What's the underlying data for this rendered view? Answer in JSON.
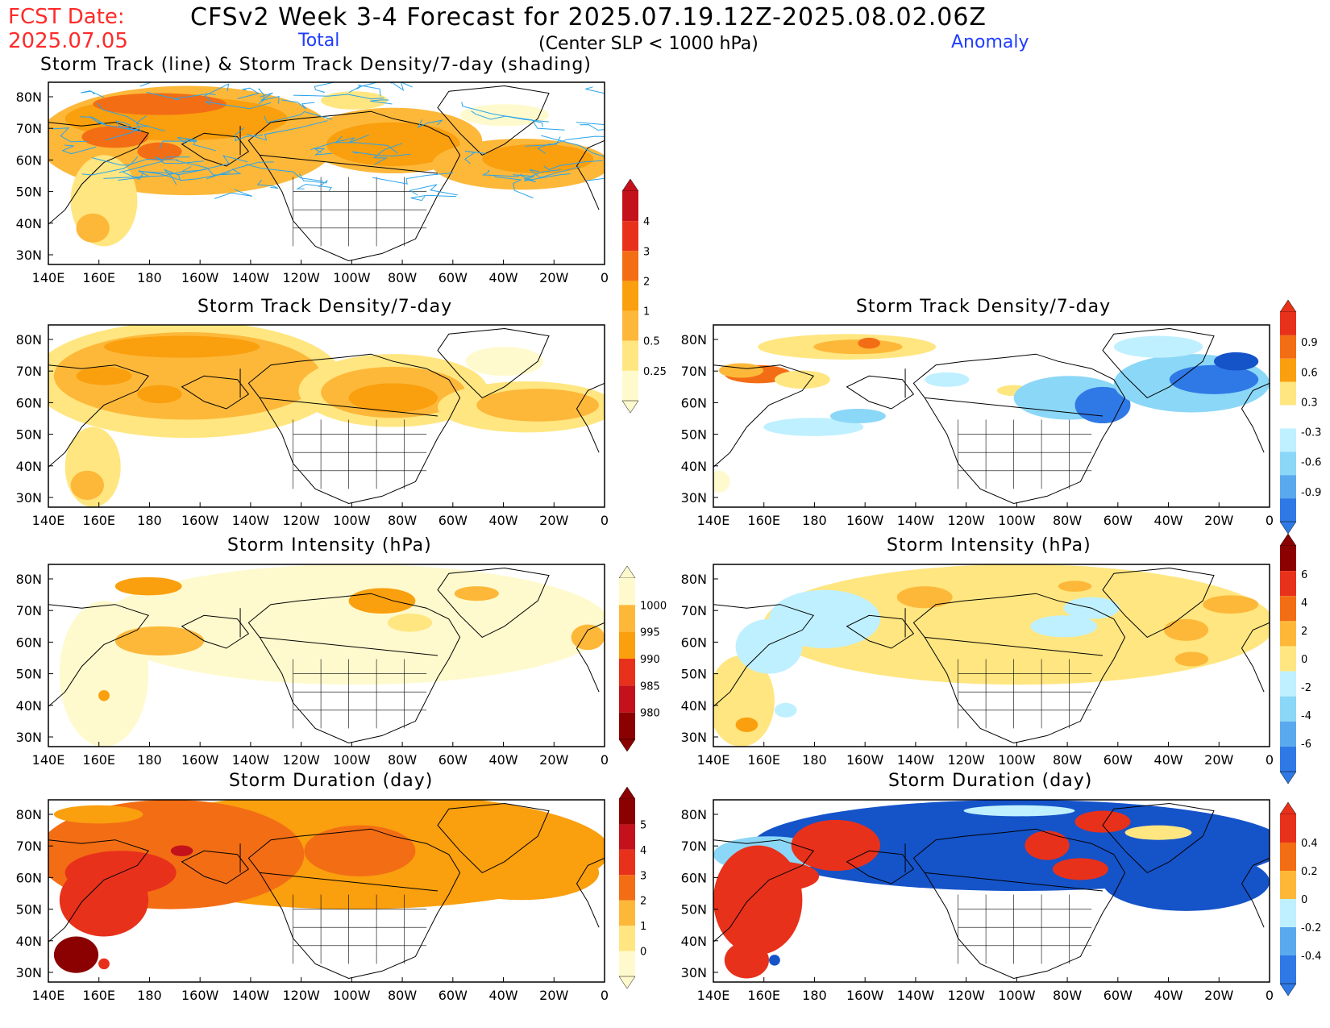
{
  "header": {
    "fcst_label": "FCST Date:",
    "fcst_date": "2025.07.05",
    "title": "CFSv2 Week 3-4 Forecast for 2025.07.19.12Z-2025.08.02.06Z",
    "left_column": "Total",
    "criterion": "(Center SLP < 1000 hPa)",
    "right_column": "Anomaly"
  },
  "panels": {
    "total_track": "Storm Track (line) & Storm Track Density/7-day (shading)",
    "total_density": "Storm Track Density/7-day",
    "anom_density": "Storm Track Density/7-day",
    "total_intensity": "Storm Intensity (hPa)",
    "anom_intensity": "Storm Intensity (hPa)",
    "total_duration": "Storm Duration (day)",
    "anom_duration": "Storm Duration (day)"
  },
  "axes": {
    "lon_labels": [
      "140E",
      "160E",
      "180",
      "160W",
      "140W",
      "120W",
      "100W",
      "80W",
      "60W",
      "40W",
      "20W",
      "0"
    ],
    "lat_labels": [
      "80N",
      "70N",
      "60N",
      "50N",
      "40N",
      "30N"
    ]
  },
  "colorbars": {
    "density_total": [
      "4",
      "3",
      "2",
      "1",
      "0.5",
      "0.25"
    ],
    "density_anom": [
      "0.9",
      "0.6",
      "0.3",
      "-0.3",
      "-0.6",
      "-0.9"
    ],
    "intensity_total": [
      "1000",
      "995",
      "990",
      "985",
      "980"
    ],
    "intensity_anom": [
      "6",
      "4",
      "2",
      "0",
      "-2",
      "-4",
      "-6"
    ],
    "duration_total": [
      "5",
      "4",
      "3",
      "2",
      "1",
      "0"
    ],
    "duration_anom": [
      "0.4",
      "0.2",
      "0",
      "-0.2",
      "-0.4"
    ]
  },
  "colors": {
    "title_red": "#ff2a2a",
    "label_blue": "#1f3cff",
    "warm": [
      "#fffacd",
      "#ffe680",
      "#fdb83a",
      "#fa9f0e",
      "#f36d14",
      "#e8311b",
      "#c4121c",
      "#8b0000"
    ],
    "cool": [
      "#bff0ff",
      "#8bd7f7",
      "#5aa9ee",
      "#2f79e6",
      "#1553c9"
    ],
    "track_line": "#2aa4ec"
  }
}
